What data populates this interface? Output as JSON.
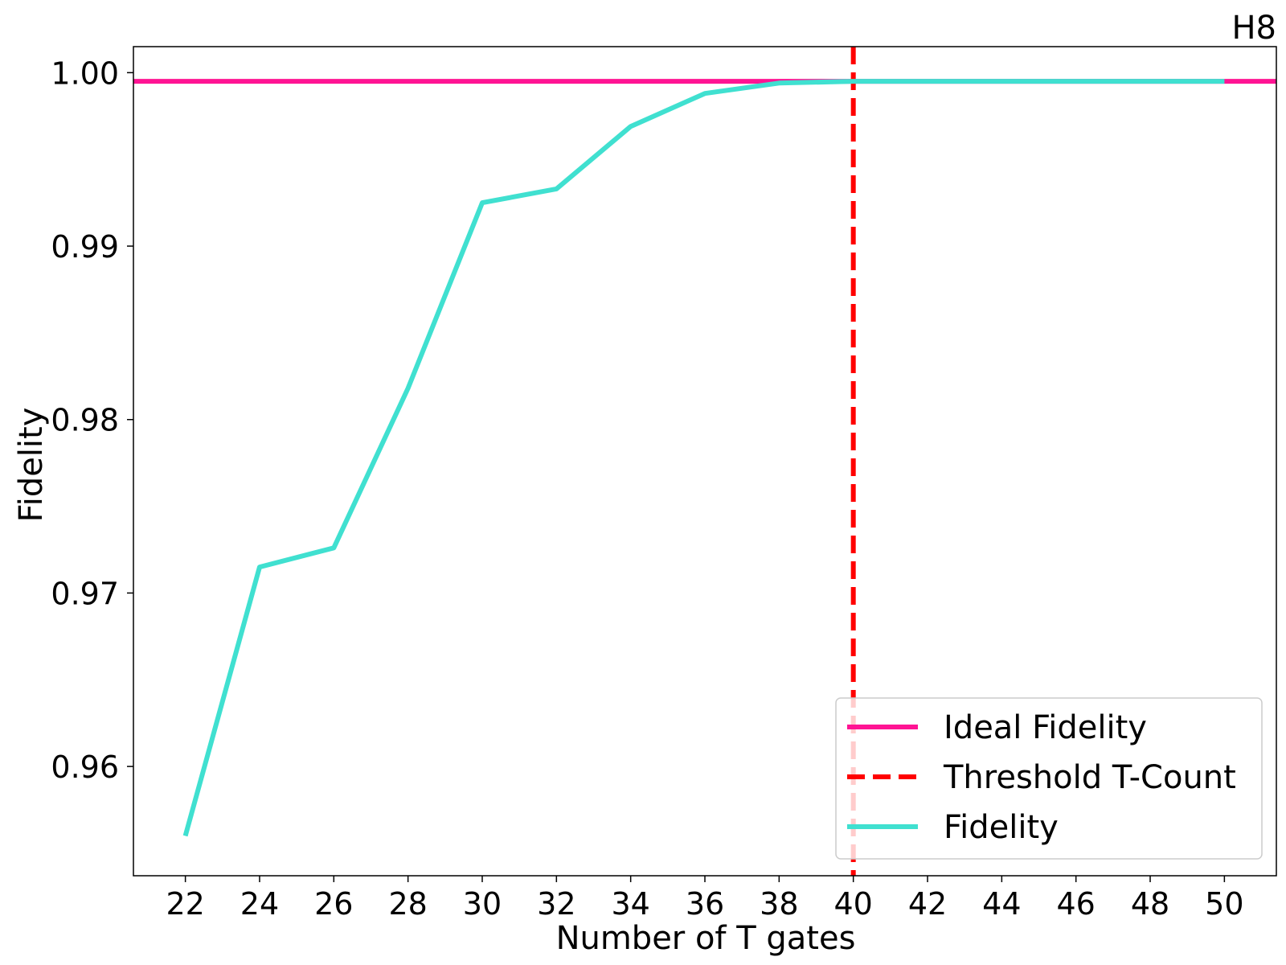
{
  "chart_data": {
    "type": "line",
    "title": "H8",
    "xlabel": "Number of T gates",
    "ylabel": "Fidelity",
    "xlim": [
      20.6,
      51.4
    ],
    "ylim": [
      0.9537,
      1.0015
    ],
    "xticks": [
      22,
      24,
      26,
      28,
      30,
      32,
      34,
      36,
      38,
      40,
      42,
      44,
      46,
      48,
      50
    ],
    "xtick_labels": [
      "22",
      "24",
      "26",
      "28",
      "30",
      "32",
      "34",
      "36",
      "38",
      "40",
      "42",
      "44",
      "46",
      "48",
      "50"
    ],
    "yticks": [
      0.96,
      0.97,
      0.98,
      0.99,
      1.0
    ],
    "ytick_labels": [
      "0.96",
      "0.97",
      "0.98",
      "0.99",
      "1.00"
    ],
    "grid": false,
    "legend_position": "bottom-right",
    "series": [
      {
        "name": "Ideal Fidelity",
        "kind": "hline",
        "y": 0.9995,
        "color": "#ff1493",
        "style": "solid"
      },
      {
        "name": "Threshold T-Count",
        "kind": "vline",
        "x": 40,
        "color": "#ff0000",
        "style": "dashed"
      },
      {
        "name": "Fidelity",
        "kind": "line",
        "color": "#40e0d0",
        "style": "solid",
        "x": [
          22,
          24,
          26,
          28,
          30,
          32,
          34,
          36,
          38,
          40,
          42,
          44,
          46,
          48,
          50
        ],
        "y": [
          0.956,
          0.9715,
          0.9726,
          0.9818,
          0.9925,
          0.9933,
          0.9969,
          0.9988,
          0.9994,
          0.9995,
          0.9995,
          0.9995,
          0.9995,
          0.9995,
          0.9995
        ]
      }
    ]
  }
}
